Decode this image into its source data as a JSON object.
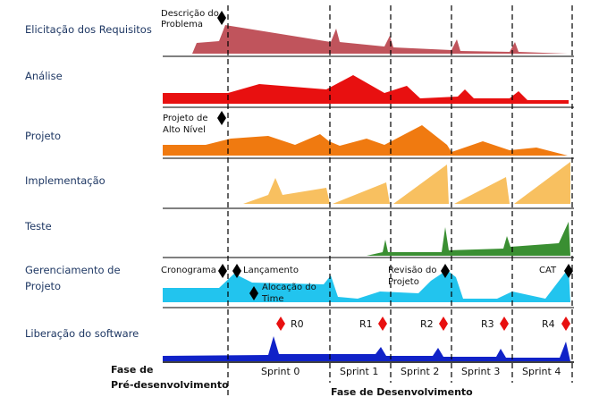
{
  "rows": [
    {
      "label": "Elicitação dos Requisitos",
      "color": "#c0545c"
    },
    {
      "label": "Análise",
      "color": "#e81010"
    },
    {
      "label": "Projeto",
      "color": "#f07a10"
    },
    {
      "label": "Implementação",
      "color": "#f8c060"
    },
    {
      "label": "Teste",
      "color": "#3a8f32"
    },
    {
      "label": "Gerenciamento de Projeto",
      "label_lines": [
        "Gerenciamento de",
        "Projeto"
      ],
      "color": "#22c4ee"
    },
    {
      "label": "Liberação do software",
      "color": "#1022c8"
    }
  ],
  "annotations": {
    "descricao_problema": [
      "Descrição do",
      "Problema"
    ],
    "projeto_alto_nivel": [
      "Projeto de",
      "Alto Nível"
    ],
    "cronograma": "Cronograma",
    "lancamento": "Lançamento",
    "alocacao_time": [
      "Alocação do",
      "Time"
    ],
    "revisao_projeto": [
      "Revisão do",
      "Projeto"
    ],
    "cat": "CAT"
  },
  "releases": [
    "R0",
    "R1",
    "R2",
    "R3",
    "R4"
  ],
  "sprints": [
    "Sprint 0",
    "Sprint 1",
    "Sprint 2",
    "Sprint 3",
    "Sprint 4"
  ],
  "phases": {
    "pre": [
      "Fase de",
      "Pré-desenvolvimento"
    ],
    "dev": "Fase de Desenvolvimento"
  },
  "colors": {
    "milestone": "#000000",
    "release_marker": "#e81010",
    "grid_line": "#000000",
    "label_text": "#1f3864"
  }
}
